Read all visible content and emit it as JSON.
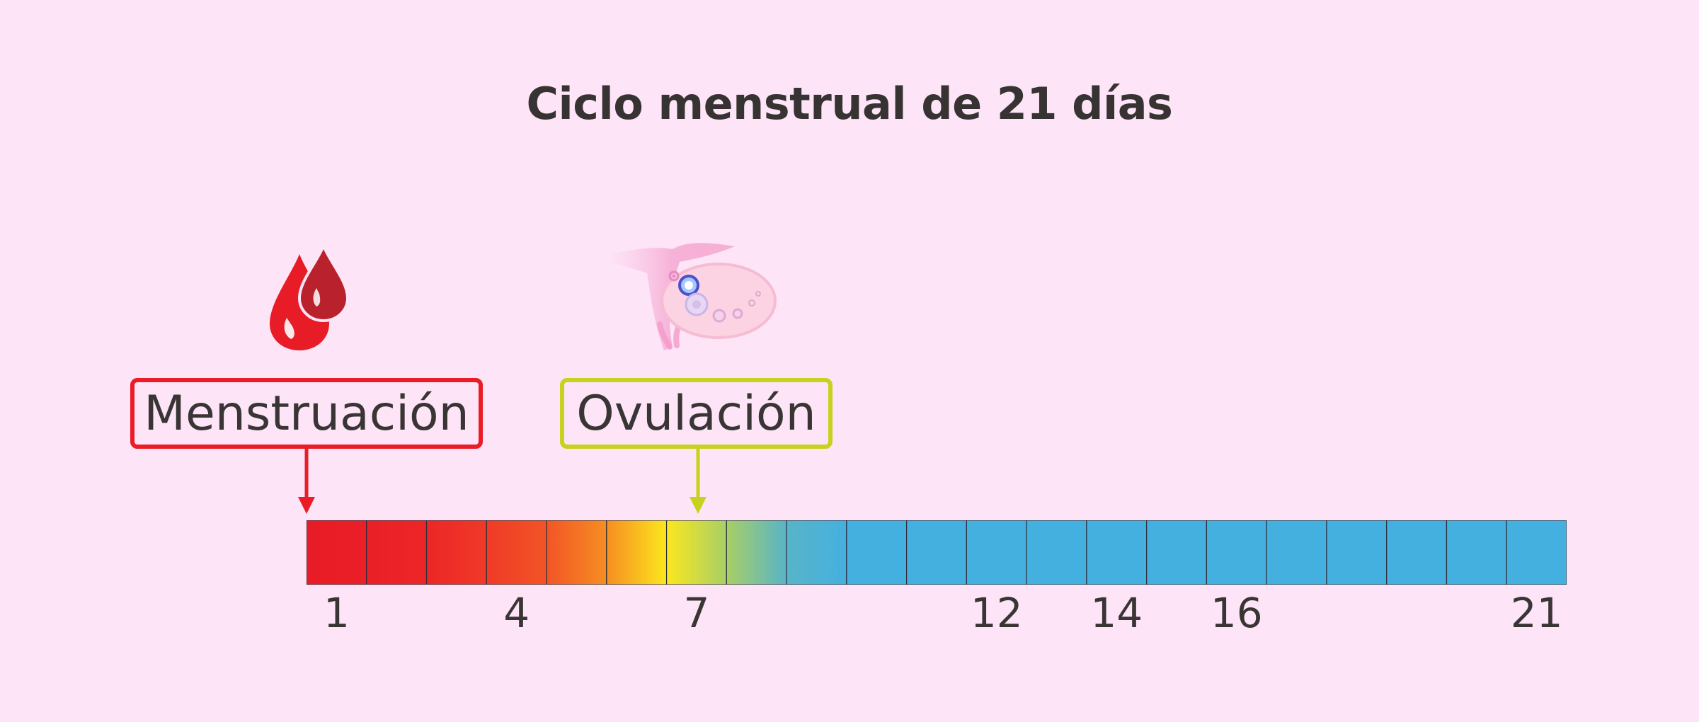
{
  "title": "Ciclo menstrual de 21 días",
  "labels": {
    "menstruation": "Menstruación",
    "ovulation": "Ovulación"
  },
  "icons": {
    "menstruation": "blood-drops-icon",
    "ovulation": "ovary-icon"
  },
  "colors": {
    "background": "#fde4f7",
    "menstruation": "#ea1d27",
    "ovulation": "#c7d21e",
    "luteal": "#44b0e0"
  },
  "chart_data": {
    "type": "timeline",
    "days": 21,
    "day_colors": [
      "#e81c26",
      "#ea1f27",
      "#ec2627",
      "#ef3a27",
      "#f25526",
      "#f68e22",
      "#fbe71e",
      "#a8cf66",
      "#58b4c8",
      "#44b0e0",
      "#44b0e0",
      "#44b0e0",
      "#44b0e0",
      "#44b0e0",
      "#44b0e0",
      "#44b0e0",
      "#44b0e0",
      "#44b0e0",
      "#44b0e0",
      "#44b0e0",
      "#44b0e0"
    ],
    "tick_labels": [
      {
        "day": 1,
        "label": "1"
      },
      {
        "day": 4,
        "label": "4"
      },
      {
        "day": 7,
        "label": "7"
      },
      {
        "day": 12,
        "label": "12"
      },
      {
        "day": 14,
        "label": "14"
      },
      {
        "day": 16,
        "label": "16"
      },
      {
        "day": 21,
        "label": "21"
      }
    ],
    "markers": [
      {
        "day": 1,
        "label": "Menstruación"
      },
      {
        "day": 7,
        "label": "Ovulación"
      }
    ]
  }
}
